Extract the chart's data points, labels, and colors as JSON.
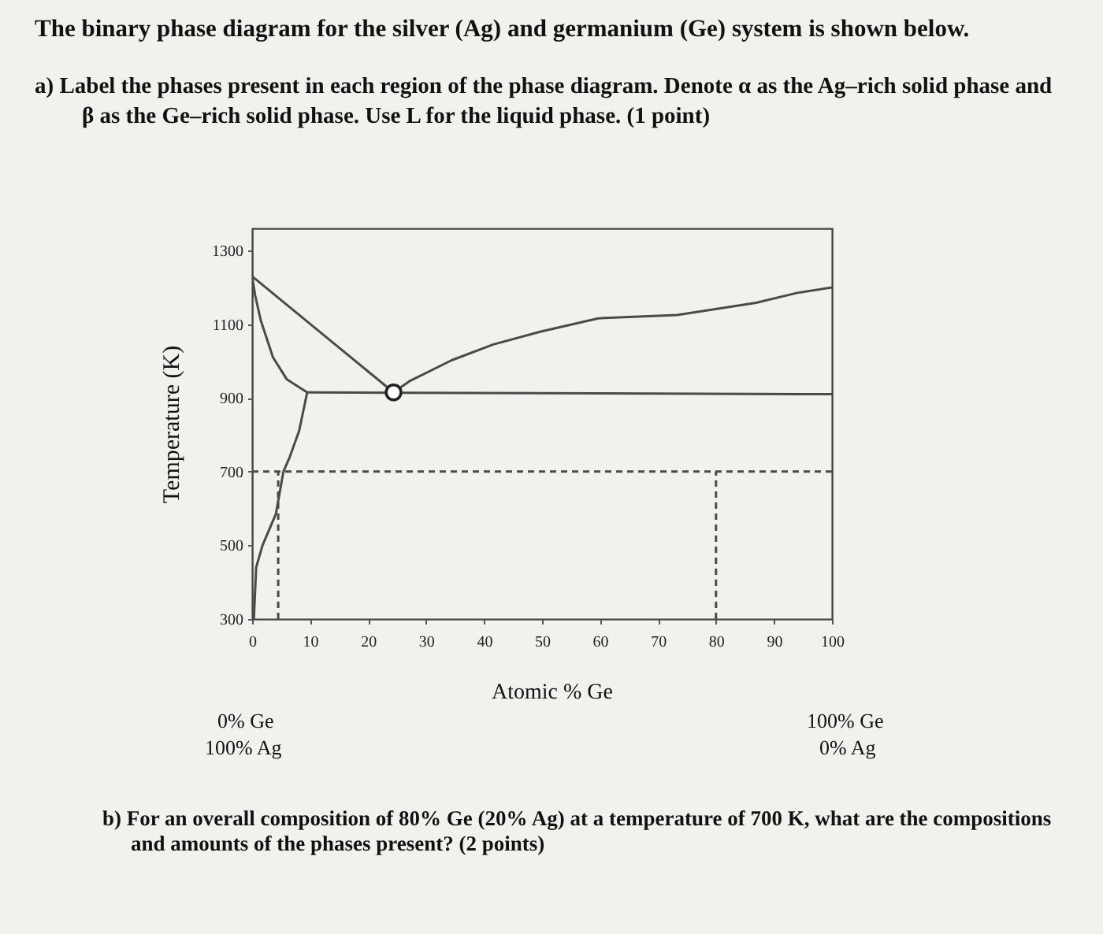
{
  "chart_data": {
    "type": "line",
    "title": "The binary phase diagram for the silver (Ag) and germanium (Ge) system is shown below.",
    "subtitle": "a) Label the phases present in each region of the phase diagram. Denote α as the Ag–rich solid phase and β as the Ge–rich solid phase. Use L for the liquid phase. (1 point)",
    "xlabel": "Atomic % Ge",
    "ylabel": "Temperature (K)",
    "annotations": [
      "0% Ge",
      "100% Ag",
      "100% Ge",
      "0% Ag",
      "b) For an overall composition of 80% Ge (20% Ag) at a temperature of 700 K, what are the compositions and amounts of the phases present? (2 points)"
    ],
    "xlim": [
      0,
      100
    ],
    "ylim": [
      300,
      1360
    ],
    "xticks": [
      0,
      10,
      20,
      30,
      40,
      50,
      60,
      70,
      80,
      90,
      100
    ],
    "yticks": [
      300,
      500,
      700,
      900,
      1100,
      1300
    ],
    "series": [
      {
        "type": "line",
        "color": "#4a4a4a",
        "x": [
          0,
          12,
          24.4
        ],
        "values": [
          1230,
          1075,
          915
        ]
      },
      {
        "type": "line",
        "color": "#4a4a4a",
        "x": [
          0,
          0.5,
          1.5,
          3.6,
          6,
          9.5
        ],
        "values": [
          1230,
          1180,
          1110,
          1010,
          950,
          915
        ]
      },
      {
        "type": "line",
        "color": "#4a4a4a",
        "x": [
          9.5,
          8.1,
          6.5,
          5.4,
          4.1,
          1.8,
          0.7,
          0.3
        ],
        "values": [
          915,
          810,
          740,
          700,
          585,
          500,
          440,
          300
        ]
      },
      {
        "type": "line",
        "color": "#4a4a4a",
        "x": [
          24.4,
          27.1,
          34.4,
          41.6,
          49.8,
          59.7,
          73.3,
          86.9,
          94,
          100
        ],
        "values": [
          915,
          945,
          1002,
          1045,
          1080,
          1116,
          1125,
          1158,
          1185,
          1200
        ]
      },
      {
        "type": "line",
        "color": "#4a4a4a",
        "x": [
          9.5,
          100
        ],
        "values": [
          915,
          910
        ]
      },
      {
        "type": "line",
        "color": "#4a4a4a",
        "line_style": "dashed",
        "x": [
          0,
          100
        ],
        "values": [
          700,
          700
        ]
      },
      {
        "type": "line",
        "color": "#4a4a4a",
        "line_style": "dashed",
        "x": [
          4.5,
          4.5
        ],
        "values": [
          300,
          700
        ]
      },
      {
        "type": "line",
        "color": "#4a4a4a",
        "line_style": "dashed",
        "x": [
          80,
          80
        ],
        "values": [
          300,
          700
        ]
      },
      {
        "type": "scatter",
        "color": "#222222",
        "marker": "circle",
        "x": [
          24.4
        ],
        "values": [
          915
        ]
      }
    ]
  }
}
